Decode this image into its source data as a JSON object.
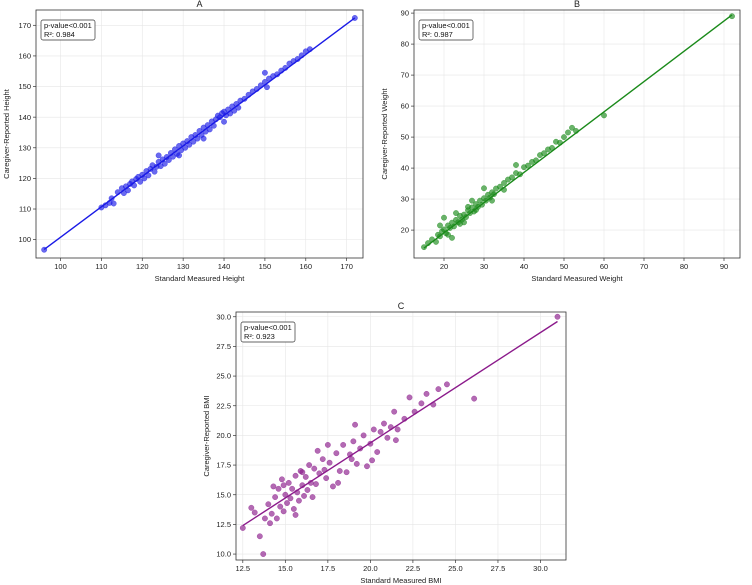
{
  "chart_data": [
    {
      "type": "scatter",
      "title": "A",
      "xlabel": "Standard Measured Height",
      "ylabel": "Caregiver-Reported Height",
      "xlim": [
        94,
        174
      ],
      "ylim": [
        94,
        175
      ],
      "xticks": [
        100,
        110,
        120,
        130,
        140,
        150,
        160,
        170
      ],
      "yticks": [
        100,
        110,
        120,
        130,
        140,
        150,
        160,
        170
      ],
      "color": "#1a1ae6",
      "grid": true,
      "annotation": [
        "p-value<0.001",
        "R²: 0.984"
      ],
      "annotation_position": "top-left",
      "fit_line": {
        "x": [
          96,
          172
        ],
        "y": [
          96.8,
          172.4
        ]
      },
      "points": [
        [
          96,
          96.7
        ],
        [
          110,
          110.5
        ],
        [
          111,
          111.2
        ],
        [
          112,
          112.0
        ],
        [
          112.5,
          113.5
        ],
        [
          113,
          111.8
        ],
        [
          114,
          115.5
        ],
        [
          115,
          116.8
        ],
        [
          115.5,
          115.2
        ],
        [
          116,
          117.4
        ],
        [
          116.5,
          116.1
        ],
        [
          117,
          118.2
        ],
        [
          117.5,
          119.0
        ],
        [
          118,
          117.7
        ],
        [
          118.5,
          119.8
        ],
        [
          119,
          120.5
        ],
        [
          119.5,
          118.9
        ],
        [
          120,
          121.2
        ],
        [
          120.5,
          120.0
        ],
        [
          121,
          122.4
        ],
        [
          121.5,
          121.0
        ],
        [
          122,
          123.1
        ],
        [
          122.5,
          124.3
        ],
        [
          123,
          122.2
        ],
        [
          123.5,
          123.8
        ],
        [
          124,
          125.4
        ],
        [
          124.5,
          124.0
        ],
        [
          125,
          126.2
        ],
        [
          125.5,
          124.8
        ],
        [
          126,
          127.0
        ],
        [
          126.5,
          126.0
        ],
        [
          127,
          128.3
        ],
        [
          127.5,
          127.1
        ],
        [
          128,
          129.5
        ],
        [
          128.5,
          128.0
        ],
        [
          129,
          130.6
        ],
        [
          129.5,
          129.2
        ],
        [
          130,
          131.4
        ],
        [
          130.5,
          130.0
        ],
        [
          131,
          132.2
        ],
        [
          131.5,
          131.0
        ],
        [
          132,
          133.5
        ],
        [
          132.5,
          132.0
        ],
        [
          133,
          134.2
        ],
        [
          133.5,
          133.0
        ],
        [
          134,
          135.5
        ],
        [
          134.5,
          134.2
        ],
        [
          135,
          136.6
        ],
        [
          135.5,
          135.3
        ],
        [
          136,
          137.4
        ],
        [
          136.5,
          136.0
        ],
        [
          137,
          138.6
        ],
        [
          137.5,
          137.2
        ],
        [
          138,
          139.3
        ],
        [
          138.5,
          140.5
        ],
        [
          139,
          140.0
        ],
        [
          139.5,
          141.3
        ],
        [
          140,
          141.8
        ],
        [
          140.5,
          140.6
        ],
        [
          141,
          142.5
        ],
        [
          141.5,
          141.2
        ],
        [
          142,
          143.5
        ],
        [
          142.5,
          142.1
        ],
        [
          143,
          144.3
        ],
        [
          143.5,
          143.1
        ],
        [
          144,
          145.4
        ],
        [
          145,
          146.0
        ],
        [
          146,
          147.3
        ],
        [
          147,
          148.4
        ],
        [
          148,
          149.2
        ],
        [
          149,
          150.4
        ],
        [
          150,
          151.5
        ],
        [
          150.5,
          149.8
        ],
        [
          151,
          152.6
        ],
        [
          152,
          153.4
        ],
        [
          153,
          154.0
        ],
        [
          154,
          155.2
        ],
        [
          155,
          156.1
        ],
        [
          156,
          157.5
        ],
        [
          157,
          158.3
        ],
        [
          158,
          159.0
        ],
        [
          159,
          160.2
        ],
        [
          160,
          161.5
        ],
        [
          161,
          162.2
        ],
        [
          172,
          172.4
        ],
        [
          124,
          127.5
        ],
        [
          129,
          127.5
        ],
        [
          135,
          133.0
        ],
        [
          140,
          138.5
        ],
        [
          150,
          154.5
        ]
      ]
    },
    {
      "type": "scatter",
      "title": "B",
      "xlabel": "Standard Measured Weight",
      "ylabel": "Caregiver-Reported Weight",
      "xlim": [
        12.5,
        94
      ],
      "ylim": [
        11,
        91
      ],
      "xticks": [
        20,
        30,
        40,
        50,
        60,
        70,
        80,
        90
      ],
      "yticks": [
        20,
        30,
        40,
        50,
        60,
        70,
        80,
        90
      ],
      "color": "#1a8a1a",
      "grid": true,
      "annotation": [
        "p-value<0.001",
        "R²: 0.987"
      ],
      "annotation_position": "top-left",
      "fit_line": {
        "x": [
          15,
          92
        ],
        "y": [
          14.2,
          89.4
        ]
      },
      "points": [
        [
          15,
          14.5
        ],
        [
          16,
          15.8
        ],
        [
          17,
          17.0
        ],
        [
          18,
          16.2
        ],
        [
          18.5,
          18.5
        ],
        [
          19,
          18.0
        ],
        [
          19.5,
          19.6
        ],
        [
          20,
          20.2
        ],
        [
          20.5,
          19.0
        ],
        [
          21,
          21.5
        ],
        [
          21.5,
          20.7
        ],
        [
          22,
          22.4
        ],
        [
          22.5,
          21.2
        ],
        [
          23,
          23.3
        ],
        [
          23.5,
          22.5
        ],
        [
          24,
          24.6
        ],
        [
          24.5,
          23.4
        ],
        [
          25,
          25.0
        ],
        [
          25.5,
          24.2
        ],
        [
          26,
          26.4
        ],
        [
          26.5,
          25.5
        ],
        [
          27,
          27.3
        ],
        [
          27.5,
          26.0
        ],
        [
          28,
          28.4
        ],
        [
          28.5,
          27.5
        ],
        [
          29,
          29.5
        ],
        [
          29.5,
          28.2
        ],
        [
          30,
          30.3
        ],
        [
          30.5,
          29.5
        ],
        [
          31,
          31.4
        ],
        [
          31.5,
          30.5
        ],
        [
          32,
          32.2
        ],
        [
          32.5,
          31.6
        ],
        [
          33,
          33.4
        ],
        [
          34,
          34.0
        ],
        [
          35,
          35.2
        ],
        [
          36,
          36.3
        ],
        [
          37,
          37.0
        ],
        [
          38,
          38.4
        ],
        [
          39,
          38.0
        ],
        [
          40,
          40.3
        ],
        [
          41,
          40.8
        ],
        [
          42,
          42.0
        ],
        [
          43,
          42.5
        ],
        [
          44,
          44.2
        ],
        [
          45,
          44.8
        ],
        [
          46,
          46.0
        ],
        [
          47,
          46.5
        ],
        [
          48,
          48.5
        ],
        [
          49,
          48.2
        ],
        [
          50,
          50.0
        ],
        [
          51,
          51.5
        ],
        [
          52,
          53.0
        ],
        [
          53,
          52.0
        ],
        [
          60,
          57.0
        ],
        [
          92,
          89.0
        ],
        [
          19,
          21.5
        ],
        [
          21,
          18.5
        ],
        [
          23,
          25.5
        ],
        [
          25,
          22.5
        ],
        [
          27,
          29.5
        ],
        [
          30,
          33.5
        ],
        [
          35,
          33.0
        ],
        [
          38,
          41.0
        ],
        [
          20,
          24.0
        ],
        [
          22,
          17.5
        ],
        [
          24,
          22.0
        ],
        [
          26,
          27.5
        ],
        [
          28,
          26.5
        ],
        [
          32,
          29.5
        ]
      ]
    },
    {
      "type": "scatter",
      "title": "C",
      "xlabel": "Standard Measured BMI",
      "ylabel": "Caregiver-Reported BMI",
      "xlim": [
        12.1,
        31.5
      ],
      "ylim": [
        9.5,
        30.4
      ],
      "xticks": [
        12.5,
        15.0,
        17.5,
        20.0,
        22.5,
        25.0,
        27.5,
        30.0
      ],
      "yticks": [
        10.0,
        12.5,
        15.0,
        17.5,
        20.0,
        22.5,
        25.0,
        27.5,
        30.0
      ],
      "tick_labels_x": [
        "12.5",
        "15.0",
        "17.5",
        "20.0",
        "22.5",
        "25.0",
        "27.5",
        "30.0"
      ],
      "tick_labels_y": [
        "10.0",
        "12.5",
        "15.0",
        "17.5",
        "20.0",
        "22.5",
        "25.0",
        "27.5",
        "30.0"
      ],
      "color": "#8b1a8b",
      "grid": true,
      "annotation": [
        "p-value<0.001",
        "R²: 0.923"
      ],
      "annotation_position": "top-left",
      "fit_line": {
        "x": [
          12.5,
          31
        ],
        "y": [
          12.4,
          29.6
        ]
      },
      "points": [
        [
          12.5,
          12.2
        ],
        [
          13.2,
          13.5
        ],
        [
          13.5,
          11.5
        ],
        [
          13.7,
          10.0
        ],
        [
          13.8,
          13.0
        ],
        [
          14.0,
          14.2
        ],
        [
          14.1,
          12.6
        ],
        [
          14.2,
          13.4
        ],
        [
          14.4,
          14.8
        ],
        [
          14.5,
          13.0
        ],
        [
          14.6,
          15.5
        ],
        [
          14.7,
          14.0
        ],
        [
          14.8,
          16.3
        ],
        [
          14.9,
          13.6
        ],
        [
          15.0,
          15.0
        ],
        [
          15.1,
          14.3
        ],
        [
          15.2,
          16.0
        ],
        [
          15.3,
          14.7
        ],
        [
          15.4,
          15.5
        ],
        [
          15.5,
          13.8
        ],
        [
          15.6,
          16.6
        ],
        [
          15.7,
          15.2
        ],
        [
          15.8,
          14.5
        ],
        [
          15.9,
          17.0
        ],
        [
          16.0,
          15.8
        ],
        [
          16.1,
          14.9
        ],
        [
          16.2,
          16.5
        ],
        [
          16.3,
          15.4
        ],
        [
          16.4,
          17.5
        ],
        [
          16.5,
          16.0
        ],
        [
          16.6,
          14.8
        ],
        [
          16.7,
          17.2
        ],
        [
          16.8,
          15.9
        ],
        [
          17.0,
          16.8
        ],
        [
          17.2,
          18.0
        ],
        [
          17.4,
          16.4
        ],
        [
          17.6,
          17.7
        ],
        [
          17.8,
          15.7
        ],
        [
          18.0,
          18.5
        ],
        [
          18.2,
          17.0
        ],
        [
          18.4,
          19.2
        ],
        [
          18.6,
          16.9
        ],
        [
          18.8,
          18.4
        ],
        [
          19.0,
          19.5
        ],
        [
          19.2,
          17.6
        ],
        [
          19.4,
          18.9
        ],
        [
          19.6,
          20.0
        ],
        [
          19.8,
          17.4
        ],
        [
          20.0,
          19.3
        ],
        [
          20.2,
          20.5
        ],
        [
          20.4,
          18.6
        ],
        [
          20.6,
          20.3
        ],
        [
          20.8,
          21.0
        ],
        [
          21.0,
          19.8
        ],
        [
          21.2,
          20.7
        ],
        [
          21.4,
          22.0
        ],
        [
          21.6,
          20.5
        ],
        [
          22.0,
          21.4
        ],
        [
          22.3,
          23.2
        ],
        [
          22.6,
          22.0
        ],
        [
          23.0,
          22.7
        ],
        [
          23.3,
          23.5
        ],
        [
          23.7,
          22.6
        ],
        [
          24.0,
          23.9
        ],
        [
          24.5,
          24.3
        ],
        [
          26.1,
          23.1
        ],
        [
          31.0,
          30.0
        ],
        [
          13.0,
          13.9
        ],
        [
          14.3,
          15.7
        ],
        [
          16.9,
          18.7
        ],
        [
          17.5,
          19.2
        ],
        [
          18.1,
          16.0
        ],
        [
          19.1,
          20.9
        ],
        [
          20.1,
          17.9
        ],
        [
          21.5,
          19.6
        ],
        [
          15.6,
          13.3
        ],
        [
          16.0,
          16.9
        ],
        [
          14.9,
          15.8
        ],
        [
          17.3,
          17.1
        ],
        [
          18.9,
          18.0
        ]
      ]
    }
  ]
}
